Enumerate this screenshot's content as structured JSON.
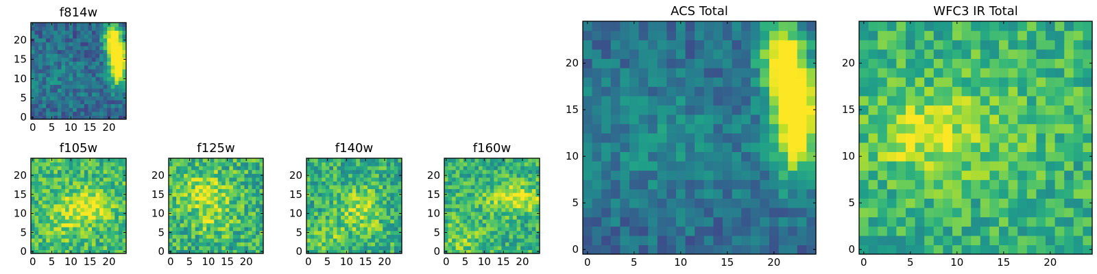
{
  "chart_data": [
    {
      "type": "heatmap",
      "title": "f814w",
      "x_ticks": [
        "0",
        "5",
        "10",
        "15",
        "20"
      ],
      "y_ticks": [
        "0",
        "5",
        "10",
        "15",
        "20"
      ],
      "xlim": [
        -0.5,
        24.5
      ],
      "ylim": [
        -0.5,
        24.5
      ],
      "grid_size": 25,
      "colormap": "viridis",
      "blobs": [
        {
          "cx": 22.5,
          "cy": 14.5,
          "sx": 1.6,
          "sy": 4.5,
          "amp": 0.85
        },
        {
          "cx": 20.5,
          "cy": 20.5,
          "sx": 1.5,
          "sy": 3.5,
          "amp": 0.6
        },
        {
          "cx": 6,
          "cy": 10,
          "sx": 9,
          "sy": 6,
          "amp": 0.1
        }
      ],
      "base": 0.32,
      "noise": 0.3,
      "seed": 11
    },
    {
      "type": "heatmap",
      "title": "f105w",
      "x_ticks": [
        "0",
        "5",
        "10",
        "15",
        "20"
      ],
      "y_ticks": [
        "0",
        "5",
        "10",
        "15",
        "20"
      ],
      "xlim": [
        -0.5,
        24.5
      ],
      "ylim": [
        -0.5,
        24.5
      ],
      "grid_size": 25,
      "colormap": "viridis",
      "blobs": [
        {
          "cx": 15,
          "cy": 12,
          "sx": 4,
          "sy": 3,
          "amp": 0.3
        },
        {
          "cx": 8,
          "cy": 9,
          "sx": 4,
          "sy": 4,
          "amp": 0.15
        }
      ],
      "base": 0.68,
      "noise": 0.38,
      "seed": 23
    },
    {
      "type": "heatmap",
      "title": "f125w",
      "x_ticks": [
        "0",
        "5",
        "10",
        "15",
        "20"
      ],
      "y_ticks": [
        "0",
        "5",
        "10",
        "15",
        "20"
      ],
      "xlim": [
        -0.5,
        24.5
      ],
      "ylim": [
        -0.5,
        24.5
      ],
      "grid_size": 25,
      "colormap": "viridis",
      "blobs": [
        {
          "cx": 9,
          "cy": 16,
          "sx": 5,
          "sy": 4,
          "amp": 0.25
        },
        {
          "cx": 12,
          "cy": 8,
          "sx": 4,
          "sy": 3,
          "amp": 0.15
        }
      ],
      "base": 0.64,
      "noise": 0.42,
      "seed": 37
    },
    {
      "type": "heatmap",
      "title": "f140w",
      "x_ticks": [
        "0",
        "5",
        "10",
        "15",
        "20"
      ],
      "y_ticks": [
        "0",
        "5",
        "10",
        "15",
        "20"
      ],
      "xlim": [
        -0.5,
        24.5
      ],
      "ylim": [
        -0.5,
        24.5
      ],
      "grid_size": 25,
      "colormap": "viridis",
      "blobs": [
        {
          "cx": 14,
          "cy": 11,
          "sx": 4,
          "sy": 4,
          "amp": 0.25
        },
        {
          "cx": 5,
          "cy": 3,
          "sx": 4,
          "sy": 3,
          "amp": 0.15
        }
      ],
      "base": 0.63,
      "noise": 0.4,
      "seed": 53
    },
    {
      "type": "heatmap",
      "title": "f160w",
      "x_ticks": [
        "0",
        "5",
        "10",
        "15",
        "20"
      ],
      "y_ticks": [
        "0",
        "5",
        "10",
        "15",
        "20"
      ],
      "xlim": [
        -0.5,
        24.5
      ],
      "ylim": [
        -0.5,
        24.5
      ],
      "grid_size": 25,
      "colormap": "viridis",
      "blobs": [
        {
          "cx": 18,
          "cy": 14,
          "sx": 5,
          "sy": 2.5,
          "amp": 0.35
        },
        {
          "cx": 4,
          "cy": 4,
          "sx": 4,
          "sy": 4,
          "amp": 0.15
        }
      ],
      "base": 0.64,
      "noise": 0.38,
      "seed": 71
    },
    {
      "type": "heatmap",
      "title": "ACS Total",
      "x_ticks": [
        "0",
        "5",
        "10",
        "15",
        "20"
      ],
      "y_ticks": [
        "0",
        "5",
        "10",
        "15",
        "20"
      ],
      "xlim": [
        -0.5,
        24.5
      ],
      "ylim": [
        -0.5,
        24.5
      ],
      "grid_size": 25,
      "colormap": "viridis",
      "blobs": [
        {
          "cx": 22.5,
          "cy": 14.5,
          "sx": 1.6,
          "sy": 4.5,
          "amp": 0.85
        },
        {
          "cx": 20.5,
          "cy": 20.5,
          "sx": 1.5,
          "sy": 3.5,
          "amp": 0.6
        },
        {
          "cx": 8,
          "cy": 12,
          "sx": 8,
          "sy": 5,
          "amp": 0.12
        }
      ],
      "base": 0.35,
      "noise": 0.26,
      "seed": 11
    },
    {
      "type": "heatmap",
      "title": "WFC3 IR Total",
      "x_ticks": [
        "0",
        "5",
        "10",
        "15",
        "20"
      ],
      "y_ticks": [
        "0",
        "5",
        "10",
        "15",
        "20"
      ],
      "xlim": [
        -0.5,
        24.5
      ],
      "ylim": [
        -0.5,
        24.5
      ],
      "grid_size": 25,
      "colormap": "viridis",
      "blobs": [
        {
          "cx": 6,
          "cy": 12,
          "sx": 4,
          "sy": 3,
          "amp": 0.25
        },
        {
          "cx": 13,
          "cy": 14,
          "sx": 5,
          "sy": 5,
          "amp": 0.1
        }
      ],
      "base": 0.64,
      "noise": 0.34,
      "seed": 97
    }
  ]
}
